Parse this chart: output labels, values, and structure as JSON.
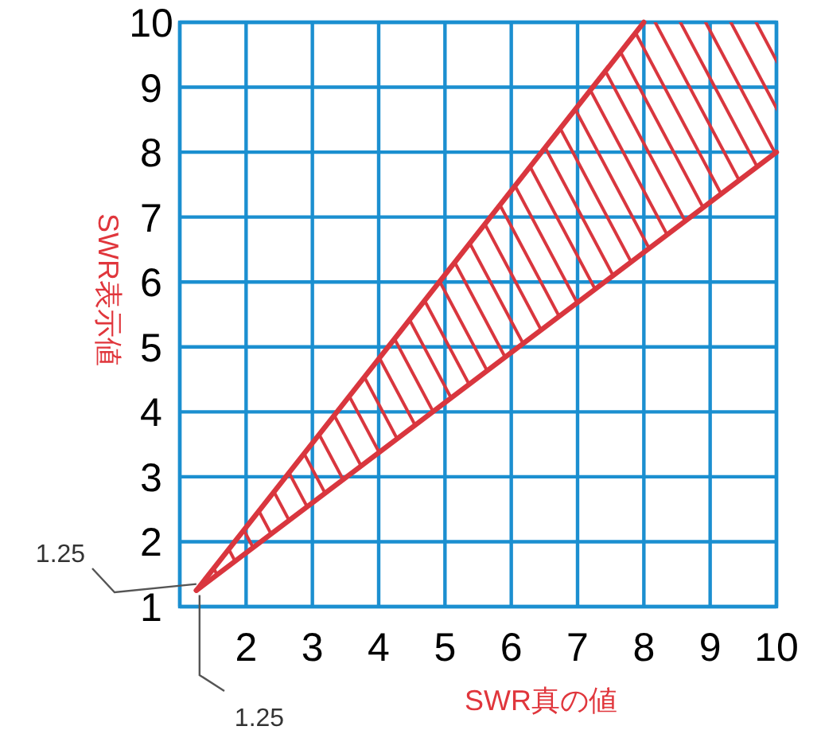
{
  "chart_data": {
    "type": "line",
    "xlabel": "SWR真の値",
    "ylabel": "SWR表示値",
    "xlim": [
      1,
      10
    ],
    "ylim": [
      1,
      10
    ],
    "xticks": [
      {
        "value": 1,
        "label": null
      },
      2,
      3,
      4,
      5,
      6,
      7,
      8,
      9,
      10
    ],
    "yticks": [
      1,
      2,
      3,
      4,
      5,
      6,
      7,
      8,
      9,
      10
    ],
    "grid": true,
    "marker": "none",
    "line_style": "solid",
    "series": [
      {
        "color": "#d9363e",
        "x": [
          1.25,
          8,
          10
        ],
        "values": [
          1.25,
          10,
          null
        ],
        "lower": [
          1.25,
          6.46,
          8
        ],
        "upper": [
          1.25,
          10,
          10
        ]
      },
      {
        "color": "#d9363e",
        "x": [
          1.25,
          10
        ],
        "values": [
          1.25,
          8
        ]
      }
    ],
    "annotations": [
      {
        "text": "1.25",
        "x": 1.25,
        "y": 1.25
      },
      {
        "text": "1.25",
        "x": 1.25,
        "y": 1.25
      }
    ]
  }
}
